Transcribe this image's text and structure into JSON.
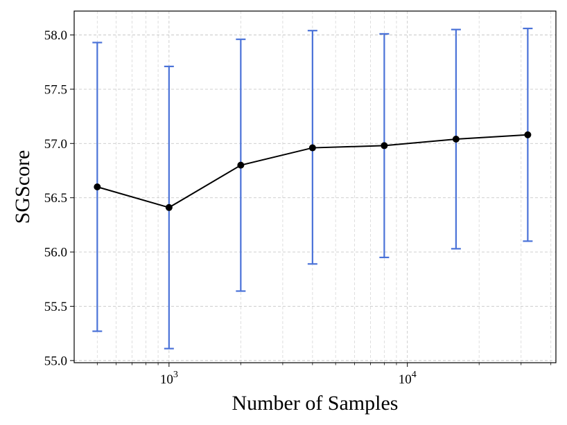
{
  "chart_data": {
    "type": "line",
    "xscale": "log",
    "xlabel": "Number of Samples",
    "ylabel": "SGScore",
    "xlim": [
      400,
      42000
    ],
    "ylim": [
      54.98,
      58.22
    ],
    "grid": true,
    "yticks": [
      55.0,
      55.5,
      56.0,
      56.5,
      57.0,
      57.5,
      58.0
    ],
    "ytick_labels": [
      "55.0",
      "55.5",
      "56.0",
      "56.5",
      "57.0",
      "57.5",
      "58.0"
    ],
    "xticks": [
      {
        "value": 1000,
        "base": "10",
        "exp": "3"
      },
      {
        "value": 10000,
        "base": "10",
        "exp": "4"
      }
    ],
    "series": [
      {
        "x": [
          500,
          1000,
          2000,
          4000,
          8000,
          16000,
          32000
        ],
        "y": [
          56.6,
          56.41,
          56.8,
          56.96,
          56.98,
          57.04,
          57.08
        ],
        "err_low": [
          55.27,
          55.11,
          55.64,
          55.89,
          55.95,
          56.03,
          56.1
        ],
        "err_high": [
          57.93,
          57.71,
          57.96,
          58.04,
          58.01,
          58.05,
          58.06
        ],
        "line_color": "#000000",
        "marker_color": "#000000",
        "error_color": "#4a72d8"
      }
    ]
  }
}
